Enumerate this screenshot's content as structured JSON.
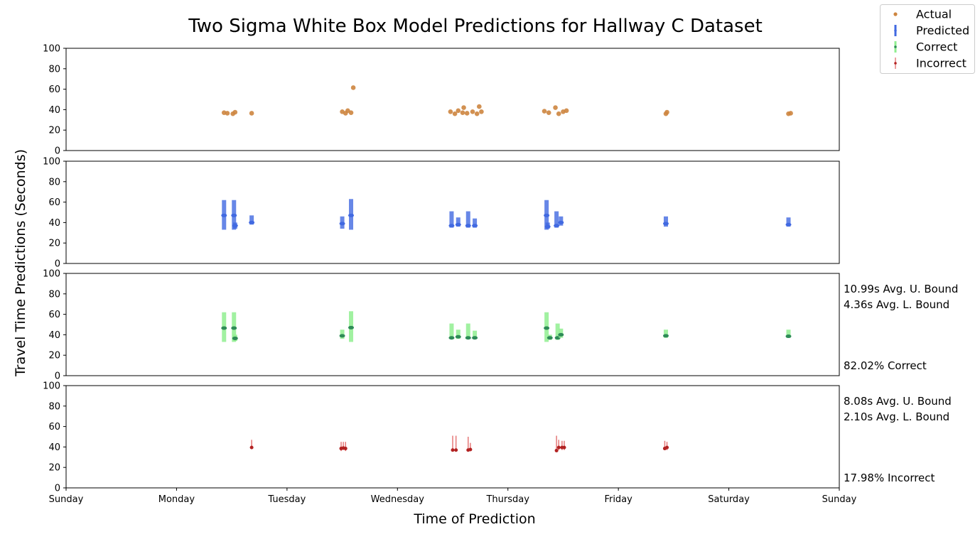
{
  "chart_data": {
    "type": "scatter",
    "title": "Two Sigma White Box Model Predictions for Hallway C Dataset",
    "xlabel": "Time of Prediction",
    "ylabel": "Travel Time Predictions (Seconds)",
    "xlim": [
      0,
      7
    ],
    "ylim": [
      0,
      100
    ],
    "x_tick_labels": [
      "Sunday",
      "Monday",
      "Tuesday",
      "Wednesday",
      "Thursday",
      "Friday",
      "Saturday",
      "Sunday"
    ],
    "y_ticks": [
      0,
      20,
      40,
      60,
      80,
      100
    ],
    "legend": {
      "placement": "top-right",
      "entries": [
        {
          "label": "Actual",
          "color": "#cd853f"
        },
        {
          "label": "Predicted",
          "color": "#4169e1"
        },
        {
          "label": "Correct",
          "color": "#2e8b57"
        },
        {
          "label": "Incorrect",
          "color": "#b22222"
        }
      ]
    },
    "panels": [
      {
        "name": "actual",
        "kind": "actual",
        "color": "#cd853f",
        "points": [
          {
            "x": 1.43,
            "y": 37
          },
          {
            "x": 1.46,
            "y": 36.5
          },
          {
            "x": 1.51,
            "y": 36
          },
          {
            "x": 1.53,
            "y": 37.5
          },
          {
            "x": 1.68,
            "y": 36.5
          },
          {
            "x": 2.5,
            "y": 38
          },
          {
            "x": 2.53,
            "y": 36.5
          },
          {
            "x": 2.55,
            "y": 39
          },
          {
            "x": 2.58,
            "y": 37
          },
          {
            "x": 2.6,
            "y": 61.5
          },
          {
            "x": 3.48,
            "y": 38
          },
          {
            "x": 3.52,
            "y": 36
          },
          {
            "x": 3.55,
            "y": 39
          },
          {
            "x": 3.59,
            "y": 37
          },
          {
            "x": 3.6,
            "y": 42
          },
          {
            "x": 3.63,
            "y": 36.5
          },
          {
            "x": 3.68,
            "y": 38
          },
          {
            "x": 3.72,
            "y": 36
          },
          {
            "x": 3.74,
            "y": 43
          },
          {
            "x": 3.76,
            "y": 38
          },
          {
            "x": 4.33,
            "y": 38.5
          },
          {
            "x": 4.37,
            "y": 37
          },
          {
            "x": 4.43,
            "y": 42
          },
          {
            "x": 4.46,
            "y": 36
          },
          {
            "x": 4.5,
            "y": 38
          },
          {
            "x": 4.53,
            "y": 39
          },
          {
            "x": 5.43,
            "y": 36
          },
          {
            "x": 5.44,
            "y": 37.5
          },
          {
            "x": 6.54,
            "y": 36
          },
          {
            "x": 6.56,
            "y": 36.5
          }
        ]
      },
      {
        "name": "predicted",
        "kind": "predicted",
        "color": "#4169e1",
        "points": [
          {
            "x": 1.43,
            "y": 47,
            "lo": 33,
            "hi": 62
          },
          {
            "x": 1.52,
            "y": 47,
            "lo": 33,
            "hi": 62
          },
          {
            "x": 1.53,
            "y": 37,
            "lo": 34,
            "hi": 40
          },
          {
            "x": 1.68,
            "y": 40,
            "lo": 38,
            "hi": 47
          },
          {
            "x": 2.5,
            "y": 39,
            "lo": 34,
            "hi": 46
          },
          {
            "x": 2.58,
            "y": 47,
            "lo": 33,
            "hi": 63
          },
          {
            "x": 3.49,
            "y": 37,
            "lo": 35,
            "hi": 51
          },
          {
            "x": 3.55,
            "y": 38,
            "lo": 36,
            "hi": 45
          },
          {
            "x": 3.64,
            "y": 37,
            "lo": 35,
            "hi": 51
          },
          {
            "x": 3.7,
            "y": 37,
            "lo": 35,
            "hi": 44
          },
          {
            "x": 4.35,
            "y": 47,
            "lo": 33,
            "hi": 62
          },
          {
            "x": 4.36,
            "y": 36,
            "lo": 34,
            "hi": 40
          },
          {
            "x": 4.44,
            "y": 37,
            "lo": 35,
            "hi": 51
          },
          {
            "x": 4.48,
            "y": 40,
            "lo": 37,
            "hi": 46
          },
          {
            "x": 5.43,
            "y": 39,
            "lo": 36,
            "hi": 46
          },
          {
            "x": 6.54,
            "y": 38,
            "lo": 36,
            "hi": 45
          }
        ]
      },
      {
        "name": "correct",
        "kind": "correct",
        "color": "#2e8b57",
        "bar_color": "#90ee90",
        "annotations": [
          "10.99s Avg. U. Bound",
          "4.36s Avg. L. Bound"
        ],
        "rate": "82.02% Correct",
        "points": [
          {
            "x": 1.43,
            "y": 46.5,
            "lo": 33,
            "hi": 62
          },
          {
            "x": 1.52,
            "y": 46.5,
            "lo": 33,
            "hi": 62
          },
          {
            "x": 1.53,
            "y": 36.5,
            "lo": 34,
            "hi": 40
          },
          {
            "x": 2.5,
            "y": 39,
            "lo": 36,
            "hi": 45
          },
          {
            "x": 2.58,
            "y": 47,
            "lo": 33,
            "hi": 63
          },
          {
            "x": 3.49,
            "y": 37,
            "lo": 36,
            "hi": 51
          },
          {
            "x": 3.55,
            "y": 38,
            "lo": 36,
            "hi": 45
          },
          {
            "x": 3.64,
            "y": 37,
            "lo": 36,
            "hi": 51
          },
          {
            "x": 3.7,
            "y": 37,
            "lo": 36,
            "hi": 44
          },
          {
            "x": 4.35,
            "y": 46.5,
            "lo": 33,
            "hi": 62
          },
          {
            "x": 4.38,
            "y": 37,
            "lo": 35,
            "hi": 40
          },
          {
            "x": 4.45,
            "y": 37,
            "lo": 35,
            "hi": 51
          },
          {
            "x": 4.48,
            "y": 40,
            "lo": 37,
            "hi": 46
          },
          {
            "x": 5.43,
            "y": 39,
            "lo": 37,
            "hi": 45
          },
          {
            "x": 6.54,
            "y": 38.5,
            "lo": 37,
            "hi": 45
          }
        ]
      },
      {
        "name": "incorrect",
        "kind": "incorrect",
        "color": "#b22222",
        "bar_color": "#e06060",
        "annotations": [
          "8.08s Avg. U. Bound",
          "2.10s Avg. L. Bound"
        ],
        "rate": "17.98% Incorrect",
        "points": [
          {
            "x": 1.68,
            "y": 39.5,
            "lo": 38,
            "hi": 47
          },
          {
            "x": 2.49,
            "y": 38.5,
            "lo": 36,
            "hi": 45
          },
          {
            "x": 2.51,
            "y": 39,
            "lo": 37,
            "hi": 45
          },
          {
            "x": 2.53,
            "y": 38.5,
            "lo": 36,
            "hi": 45
          },
          {
            "x": 3.5,
            "y": 37,
            "lo": 36,
            "hi": 51
          },
          {
            "x": 3.53,
            "y": 37,
            "lo": 36,
            "hi": 51
          },
          {
            "x": 3.64,
            "y": 37,
            "lo": 36,
            "hi": 50
          },
          {
            "x": 3.66,
            "y": 37.5,
            "lo": 36,
            "hi": 44
          },
          {
            "x": 4.44,
            "y": 36.5,
            "lo": 35,
            "hi": 51
          },
          {
            "x": 4.46,
            "y": 39.5,
            "lo": 37,
            "hi": 47
          },
          {
            "x": 4.49,
            "y": 39.5,
            "lo": 37,
            "hi": 46
          },
          {
            "x": 4.51,
            "y": 39.5,
            "lo": 37,
            "hi": 46
          },
          {
            "x": 5.42,
            "y": 38.5,
            "lo": 37,
            "hi": 46
          },
          {
            "x": 5.44,
            "y": 39.5,
            "lo": 37,
            "hi": 45
          }
        ]
      }
    ]
  }
}
